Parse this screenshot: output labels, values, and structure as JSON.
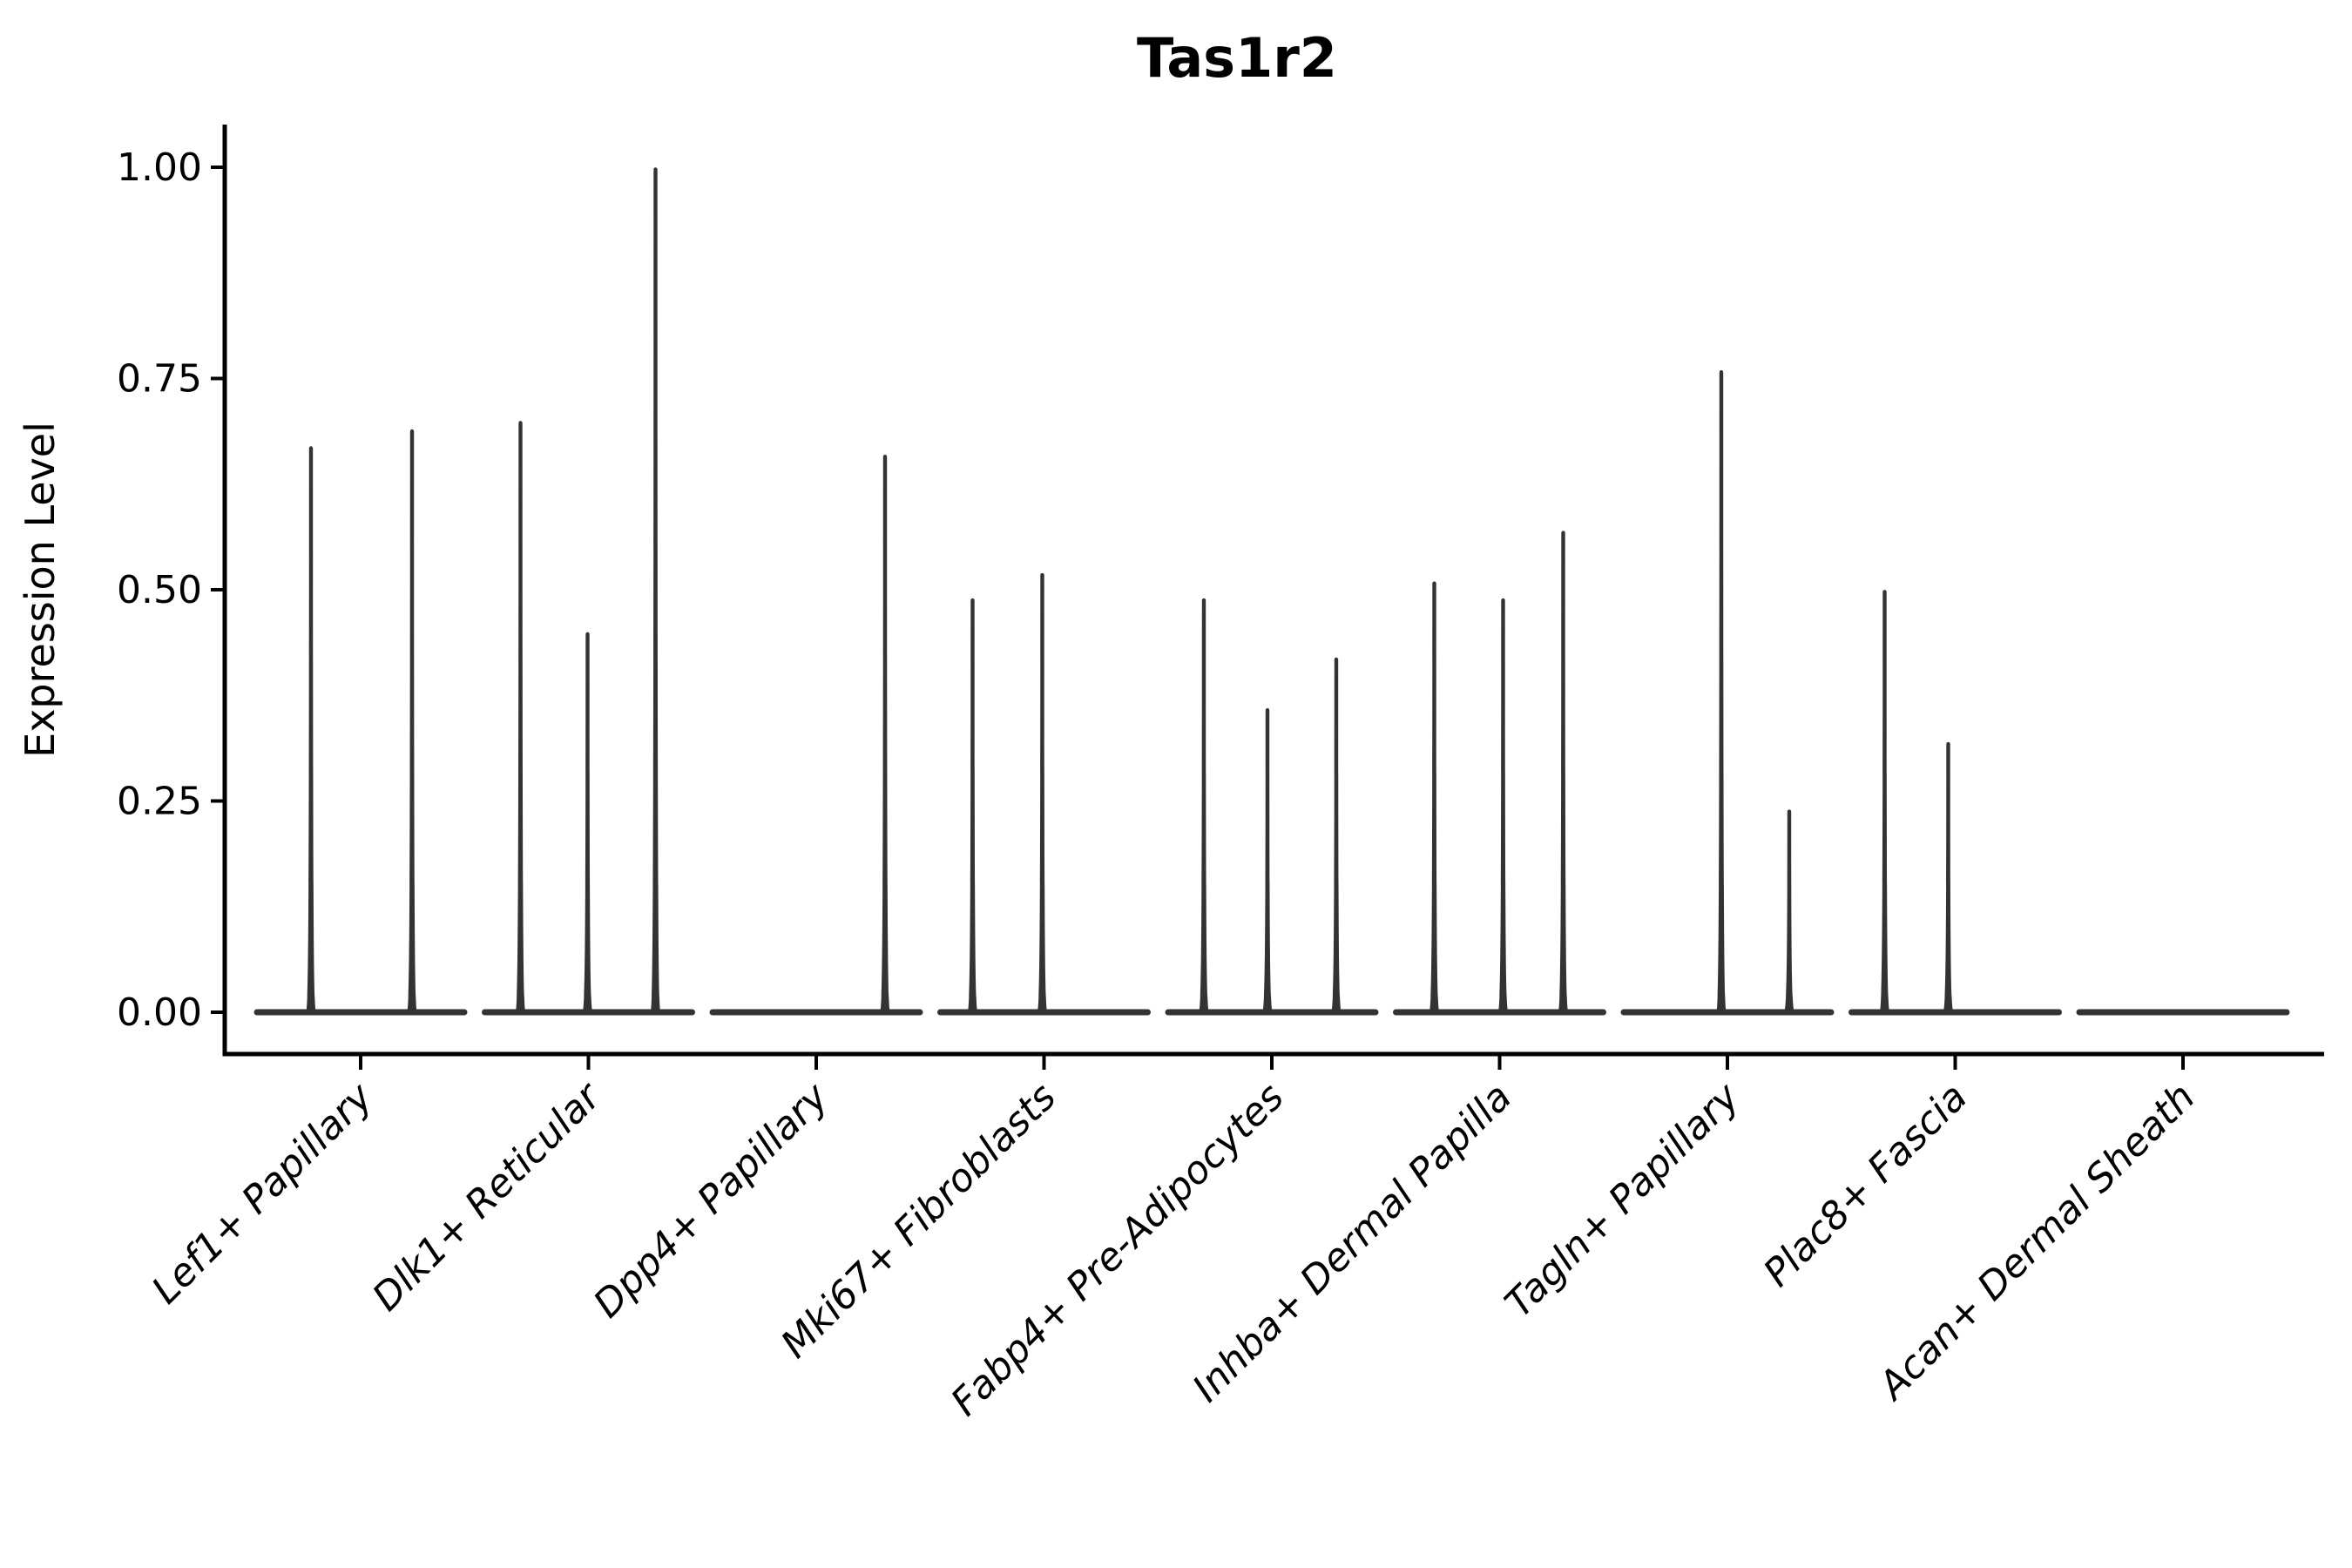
{
  "chart_data": {
    "type": "violin",
    "title": "Tas1r2",
    "xlabel": "",
    "ylabel": "Expression Level",
    "ylim": [
      0,
      1.05
    ],
    "yticks": [
      0.0,
      0.25,
      0.5,
      0.75,
      1.0
    ],
    "ytick_labels": [
      "0.00",
      "0.25",
      "0.50",
      "0.75",
      "1.00"
    ],
    "grid": false,
    "legend_position": "none",
    "x_tick_rotation_deg": 45,
    "categories": [
      "Lef1+ Papillary",
      "Dlk1+ Reticular",
      "Dpp4+ Papillary",
      "Mki67+ Fibroblasts",
      "Fabp4+ Pre-Adipocytes",
      "Inhba+ Dermal Papilla",
      "Tagln+ Papillary",
      "Plac8+ Fascia",
      "Acan+ Dermal Sheath"
    ],
    "series": [
      {
        "name": "Lef1+ Papillary",
        "baseline_value": 0,
        "spikes": [
          {
            "value": 0.67,
            "dx": -57
          },
          {
            "value": 0.69,
            "dx": 59
          }
        ]
      },
      {
        "name": "Dlk1+ Reticular",
        "baseline_value": 0,
        "spikes": [
          {
            "value": 0.7,
            "dx": -78
          },
          {
            "value": 0.45,
            "dx": -1
          },
          {
            "value": 1.0,
            "dx": 77
          }
        ]
      },
      {
        "name": "Dpp4+ Papillary",
        "baseline_value": 0,
        "spikes": [
          {
            "value": 0.66,
            "dx": 79
          }
        ]
      },
      {
        "name": "Mki67+ Fibroblasts",
        "baseline_value": 0,
        "spikes": [
          {
            "value": 0.49,
            "dx": -82
          },
          {
            "value": 0.52,
            "dx": -2
          }
        ]
      },
      {
        "name": "Fabp4+ Pre-Adipocytes",
        "baseline_value": 0,
        "spikes": [
          {
            "value": 0.49,
            "dx": -78
          },
          {
            "value": 0.36,
            "dx": -5
          },
          {
            "value": 0.42,
            "dx": 74
          }
        ]
      },
      {
        "name": "Inhba+ Dermal Papilla",
        "baseline_value": 0,
        "spikes": [
          {
            "value": 0.51,
            "dx": -75
          },
          {
            "value": 0.49,
            "dx": 4
          },
          {
            "value": 0.57,
            "dx": 73
          }
        ]
      },
      {
        "name": "Tagln+ Papillary",
        "baseline_value": 0,
        "spikes": [
          {
            "value": 0.76,
            "dx": -7
          },
          {
            "value": 0.24,
            "dx": 71
          }
        ]
      },
      {
        "name": "Plac8+ Fascia",
        "baseline_value": 0,
        "spikes": [
          {
            "value": 0.5,
            "dx": -81
          },
          {
            "value": 0.32,
            "dx": -8
          }
        ]
      },
      {
        "name": "Acan+ Dermal Sheath",
        "baseline_value": 0,
        "spikes": []
      }
    ],
    "colors": {
      "violin_ink": "#333333",
      "axis": "#000000",
      "text": "#000000",
      "background": "#ffffff"
    }
  }
}
